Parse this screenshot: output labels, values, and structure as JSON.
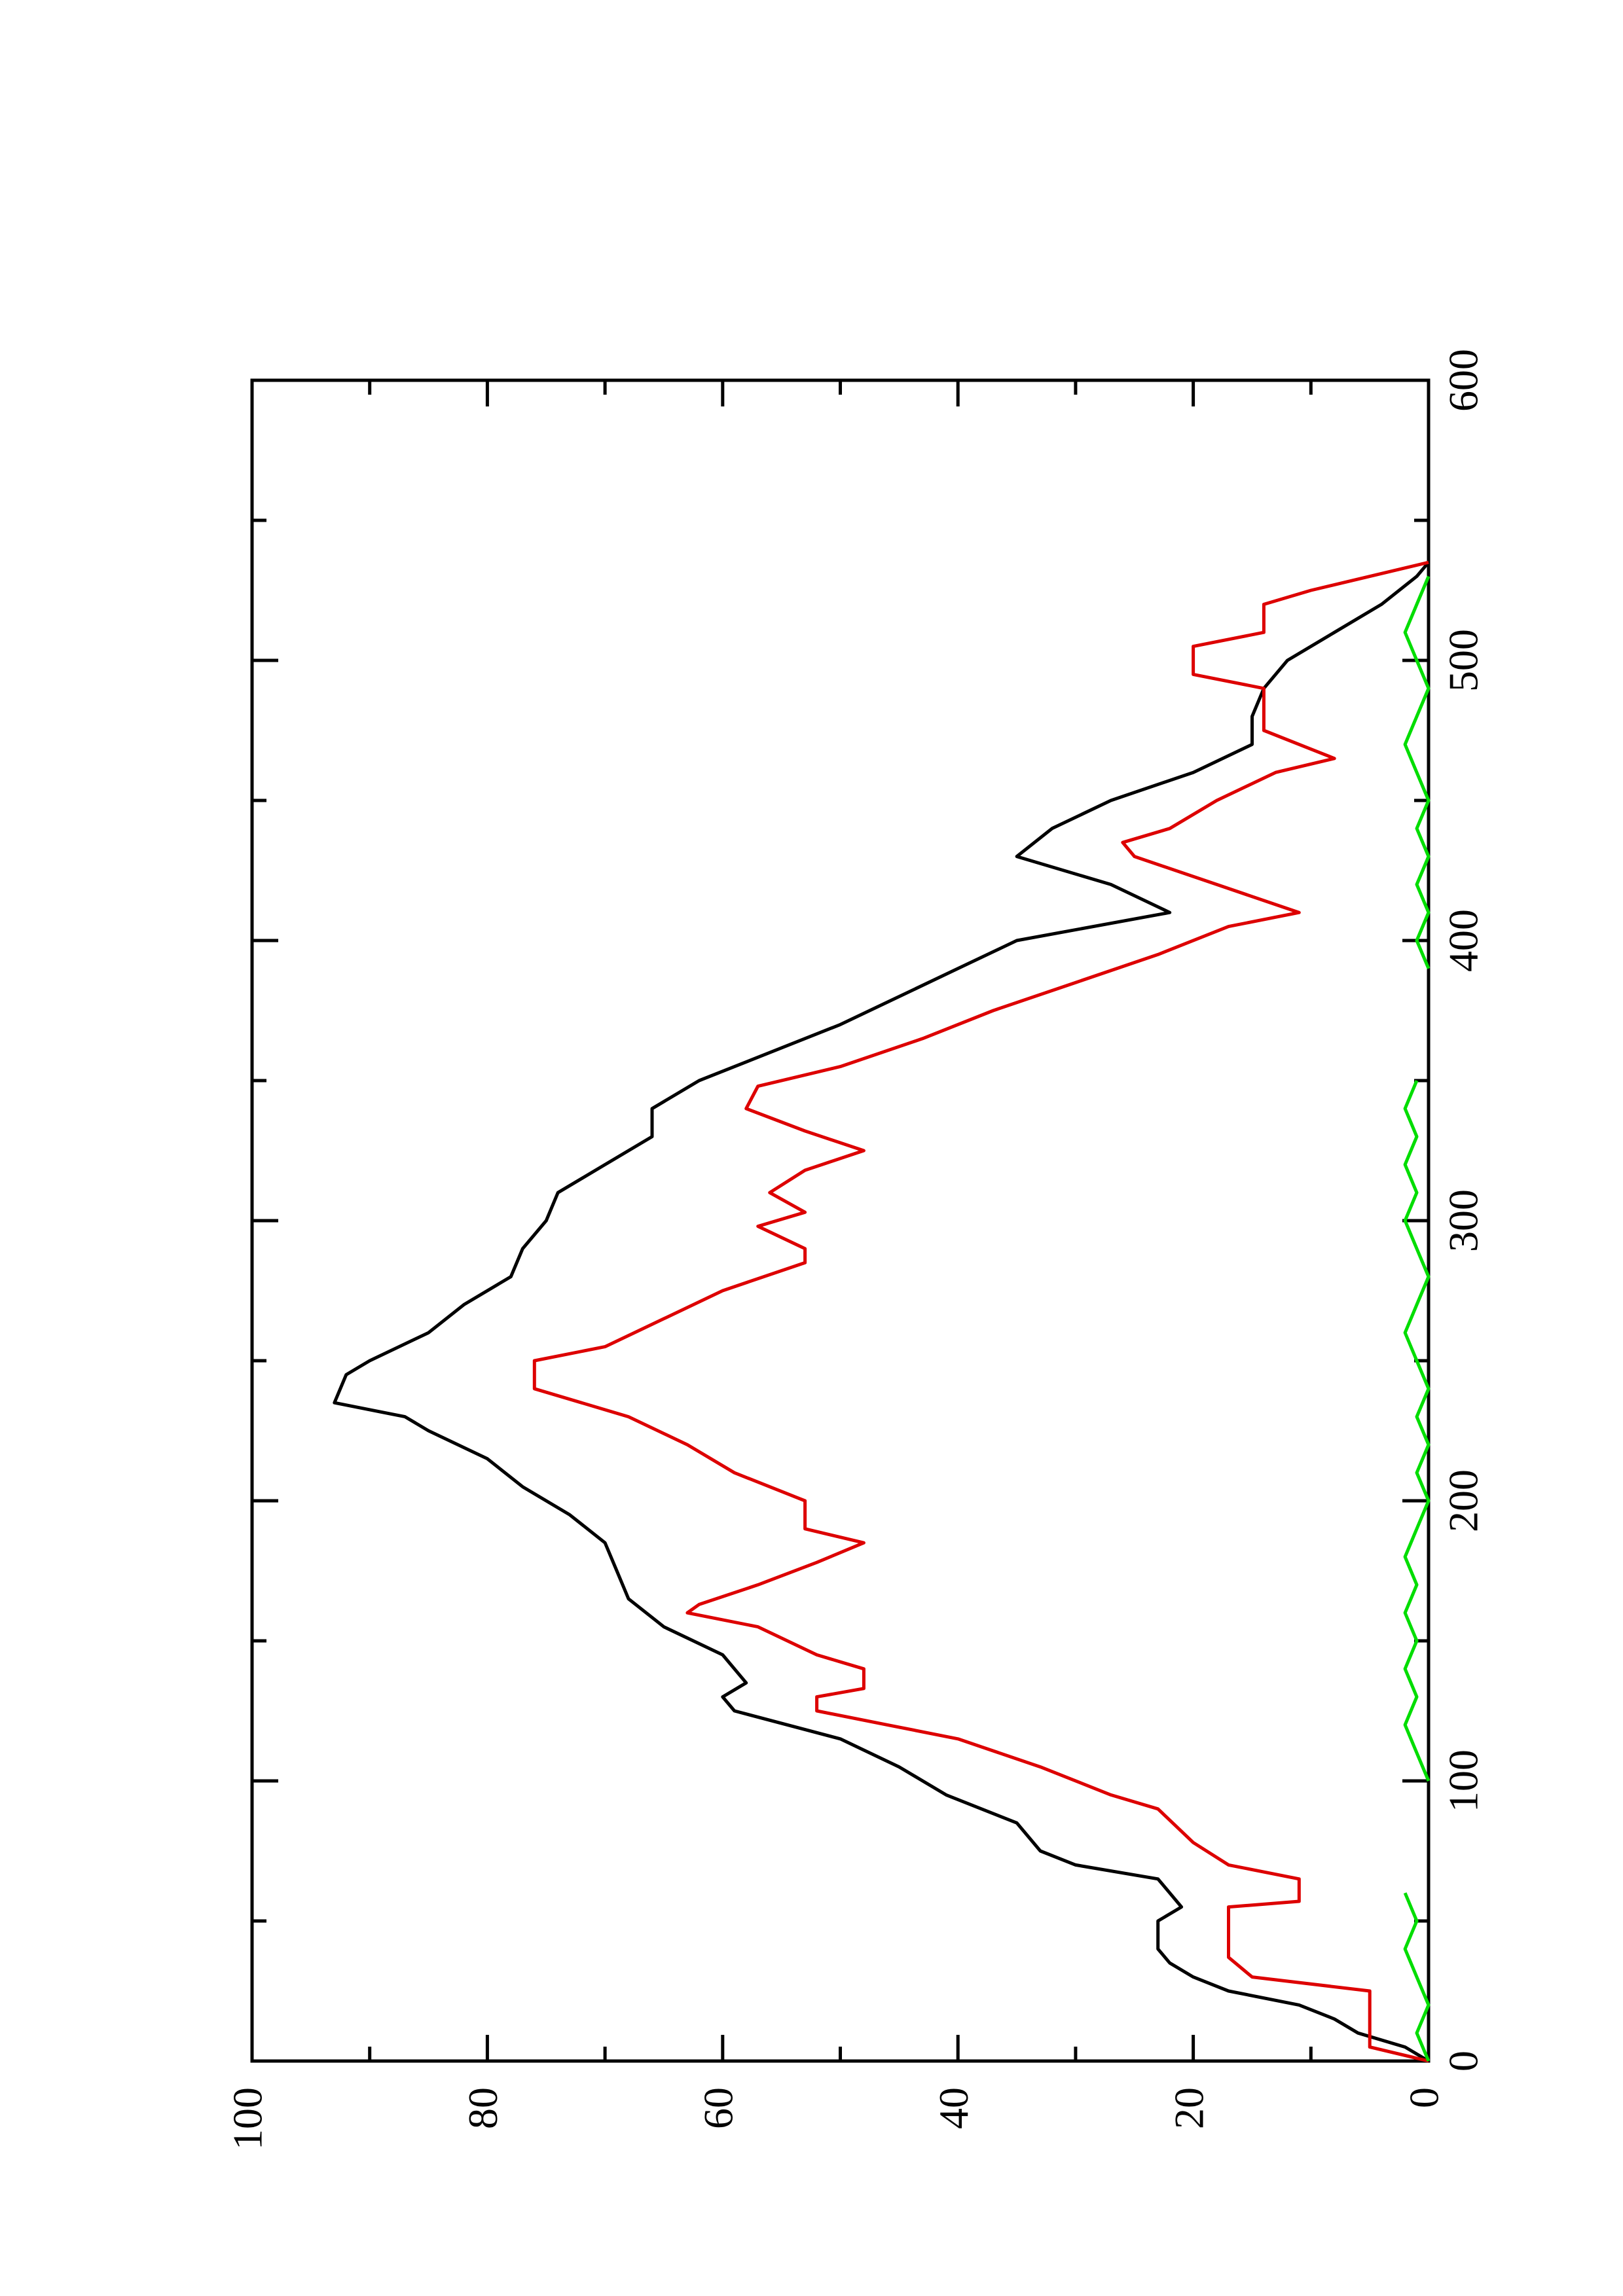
{
  "chart_data": {
    "type": "line",
    "xlim": [
      0,
      600
    ],
    "xticks": [
      0,
      100,
      200,
      300,
      400,
      500,
      600
    ],
    "xminorticks": [
      50,
      150,
      250,
      350,
      450,
      550
    ],
    "ylim": [
      0,
      100
    ],
    "yticks": [
      0,
      20,
      40,
      60,
      80,
      100
    ],
    "yminorticks": [
      10,
      30,
      50,
      70,
      90
    ],
    "series": [
      {
        "color": "#000000",
        "x": [
          0,
          5,
          10,
          15,
          20,
          25,
          30,
          35,
          40,
          50,
          55,
          60,
          65,
          70,
          75,
          85,
          95,
          105,
          115,
          125,
          130,
          135,
          145,
          155,
          165,
          175,
          185,
          195,
          205,
          215,
          225,
          230,
          235,
          245,
          250,
          260,
          270,
          280,
          290,
          300,
          310,
          320,
          330,
          340,
          350,
          360,
          370,
          380,
          390,
          400,
          410,
          420,
          430,
          440,
          450,
          460,
          470,
          480,
          490,
          500,
          510,
          520,
          530,
          535
        ],
        "values": [
          0,
          2,
          6,
          8,
          11,
          17,
          20,
          22,
          23,
          23,
          21,
          22,
          23,
          30,
          33,
          35,
          41,
          45,
          50,
          59,
          60,
          58,
          60,
          65,
          68,
          69,
          70,
          73,
          77,
          80,
          85,
          87,
          93,
          92,
          90,
          85,
          82,
          78,
          77,
          75,
          74,
          70,
          66,
          66,
          62,
          56,
          50,
          45,
          40,
          35,
          22,
          27,
          35,
          32,
          27,
          20,
          15,
          15,
          14,
          12,
          8,
          4,
          1,
          0
        ]
      },
      {
        "color": "#dd0000",
        "x": [
          0,
          5,
          25,
          30,
          37,
          55,
          57,
          65,
          70,
          78,
          90,
          95,
          105,
          115,
          120,
          125,
          130,
          133,
          140,
          145,
          155,
          160,
          163,
          170,
          178,
          185,
          190,
          200,
          210,
          220,
          230,
          240,
          250,
          255,
          265,
          275,
          285,
          290,
          298,
          303,
          310,
          318,
          325,
          332,
          340,
          348,
          355,
          365,
          375,
          385,
          395,
          405,
          410,
          420,
          430,
          435,
          440,
          450,
          460,
          465,
          475,
          490,
          495,
          505,
          510,
          520,
          525,
          535
        ],
        "values": [
          0,
          5,
          5,
          15,
          17,
          17,
          11,
          11,
          17,
          20,
          23,
          27,
          33,
          40,
          46,
          52,
          52,
          48,
          48,
          52,
          57,
          63,
          62,
          57,
          52,
          48,
          53,
          53,
          59,
          63,
          68,
          76,
          76,
          70,
          65,
          60,
          53,
          53,
          57,
          53,
          56,
          53,
          48,
          53,
          58,
          57,
          50,
          43,
          37,
          30,
          23,
          17,
          11,
          18,
          25,
          26,
          22,
          18,
          13,
          8,
          14,
          14,
          20,
          20,
          14,
          14,
          10,
          0
        ]
      },
      {
        "color": "#00dd00",
        "x": [
          0,
          10,
          20,
          30,
          40,
          50,
          60,
          70,
          80,
          90,
          100,
          110,
          120,
          130,
          140,
          150,
          160,
          170,
          180,
          190,
          200,
          210,
          220,
          230,
          240,
          250,
          260,
          270,
          280,
          290,
          300,
          310,
          320,
          330,
          340,
          350,
          360,
          370,
          380,
          390,
          400,
          410,
          420,
          430,
          440,
          450,
          460,
          470,
          480,
          490,
          500,
          510,
          520,
          530
        ],
        "values": [
          0,
          1,
          0,
          1,
          2,
          1,
          2,
          null,
          0,
          null,
          0,
          1,
          2,
          1,
          2,
          1,
          2,
          1,
          2,
          1,
          0,
          1,
          0,
          1,
          0,
          1,
          2,
          1,
          0,
          1,
          2,
          1,
          2,
          1,
          2,
          1,
          null,
          0,
          null,
          0,
          1,
          0,
          1,
          0,
          1,
          0,
          1,
          2,
          1,
          0,
          1,
          2,
          1,
          0
        ]
      }
    ]
  }
}
